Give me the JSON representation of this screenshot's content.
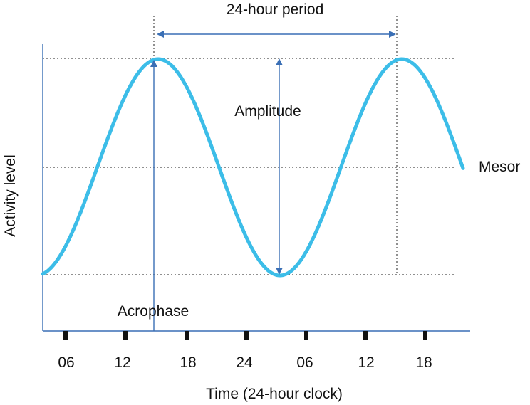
{
  "diagram": {
    "title": "24-hour period",
    "amplitude_label": "Amplitude",
    "mesor_label": "Mesor",
    "acrophase_label": "Acrophase",
    "y_axis_label": "Activity level",
    "x_axis_label": "Time (24-hour clock)",
    "x_ticks": [
      "06",
      "12",
      "18",
      "24",
      "06",
      "12",
      "18"
    ]
  },
  "colors": {
    "curve": "#3cbde8",
    "arrow": "#3a6fb5",
    "axis": "#3a6fb5",
    "guide": "#222222",
    "tick": "#111111"
  }
}
